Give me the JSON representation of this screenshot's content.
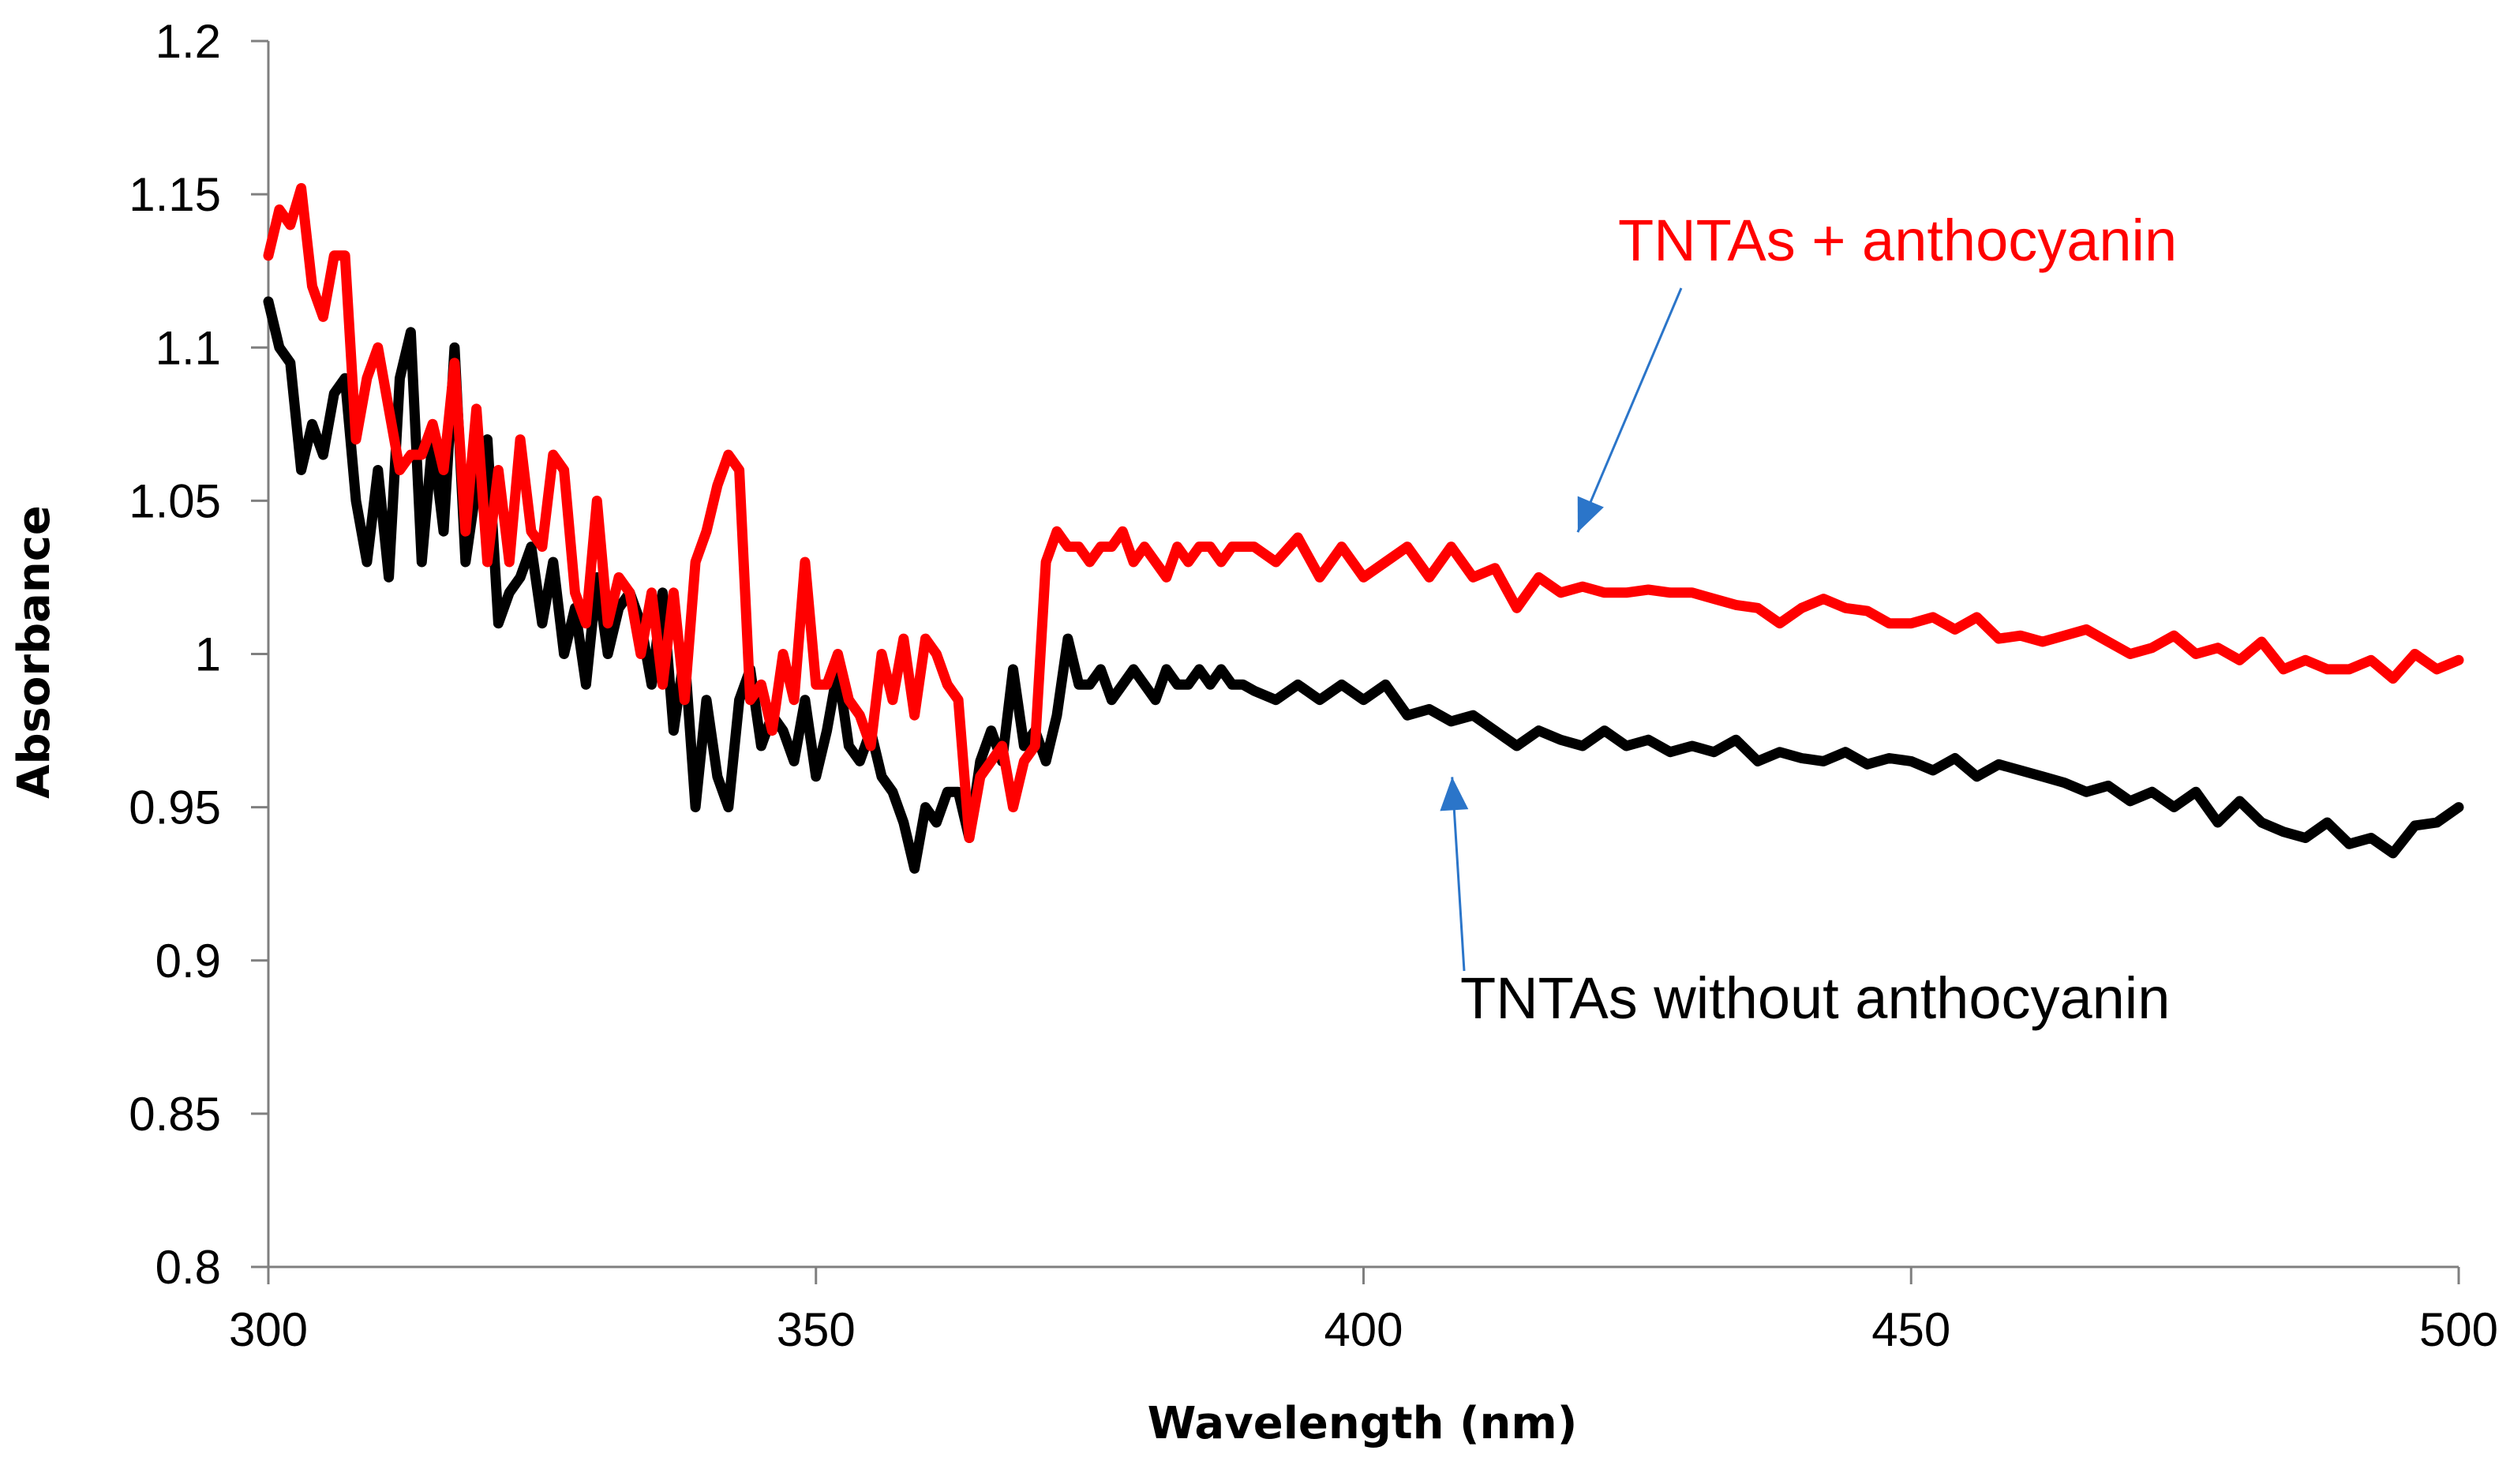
{
  "chart_data": {
    "type": "line",
    "title": "",
    "xlabel": "Wavelength (nm)",
    "ylabel": "Absorbance",
    "xlim": [
      300,
      500
    ],
    "ylim": [
      0.8,
      1.2
    ],
    "x_ticks": [
      300,
      350,
      400,
      450,
      500
    ],
    "x_tick_labels": [
      "300",
      "350",
      "400",
      "450",
      "500"
    ],
    "y_ticks": [
      0.8,
      0.85,
      0.9,
      0.95,
      1.0,
      1.05,
      1.1,
      1.15,
      1.2
    ],
    "y_tick_labels": [
      "0.8",
      "0.85",
      "0.9",
      "0.95",
      "1",
      "1.05",
      "1.1",
      "1.15",
      "1.2"
    ],
    "grid": false,
    "legend": "none (series labeled by annotations)",
    "series": [
      {
        "name": "TNTAs + anthocyanin",
        "color": "#ff0000",
        "x": [
          300,
          301,
          302,
          303,
          304,
          305,
          306,
          307,
          308,
          309,
          310,
          311,
          312,
          313,
          314,
          315,
          316,
          317,
          318,
          319,
          320,
          321,
          322,
          323,
          324,
          325,
          326,
          327,
          328,
          329,
          330,
          331,
          332,
          333,
          334,
          335,
          336,
          337,
          338,
          339,
          340,
          341,
          342,
          343,
          344,
          345,
          346,
          347,
          348,
          349,
          350,
          351,
          352,
          353,
          354,
          355,
          356,
          357,
          358,
          359,
          360,
          361,
          362,
          363,
          364,
          365,
          366,
          367,
          368,
          369,
          370,
          371,
          372,
          373,
          374,
          375,
          376,
          377,
          378,
          379,
          380,
          381,
          382,
          383,
          384,
          385,
          386,
          387,
          388,
          389,
          390,
          392,
          394,
          396,
          398,
          400,
          402,
          404,
          406,
          408,
          410,
          412,
          414,
          416,
          418,
          420,
          422,
          424,
          426,
          428,
          430,
          432,
          434,
          436,
          438,
          440,
          442,
          444,
          446,
          448,
          450,
          452,
          454,
          456,
          458,
          460,
          462,
          464,
          466,
          468,
          470,
          472,
          474,
          476,
          478,
          480,
          482,
          484,
          486,
          488,
          490,
          492,
          494,
          496,
          498,
          500
        ],
        "y": [
          1.13,
          1.145,
          1.14,
          1.152,
          1.12,
          1.11,
          1.13,
          1.13,
          1.07,
          1.09,
          1.1,
          1.08,
          1.06,
          1.065,
          1.065,
          1.075,
          1.06,
          1.095,
          1.04,
          1.08,
          1.03,
          1.06,
          1.03,
          1.07,
          1.04,
          1.035,
          1.065,
          1.06,
          1.02,
          1.01,
          1.05,
          1.01,
          1.025,
          1.02,
          1.0,
          1.02,
          0.99,
          1.02,
          0.985,
          1.03,
          1.04,
          1.055,
          1.065,
          1.06,
          0.985,
          0.99,
          0.975,
          1.0,
          0.985,
          1.03,
          0.99,
          0.99,
          1.0,
          0.985,
          0.98,
          0.97,
          1.0,
          0.985,
          1.005,
          0.98,
          1.005,
          1.0,
          0.99,
          0.985,
          0.94,
          0.96,
          0.965,
          0.97,
          0.95,
          0.965,
          0.97,
          1.03,
          1.04,
          1.035,
          1.035,
          1.03,
          1.035,
          1.035,
          1.04,
          1.03,
          1.035,
          1.03,
          1.025,
          1.035,
          1.03,
          1.035,
          1.035,
          1.03,
          1.035,
          1.035,
          1.035,
          1.03,
          1.038,
          1.025,
          1.035,
          1.025,
          1.03,
          1.035,
          1.025,
          1.035,
          1.025,
          1.028,
          1.015,
          1.025,
          1.02,
          1.022,
          1.02,
          1.02,
          1.021,
          1.02,
          1.02,
          1.018,
          1.016,
          1.015,
          1.01,
          1.015,
          1.018,
          1.015,
          1.014,
          1.01,
          1.01,
          1.012,
          1.008,
          1.012,
          1.005,
          1.006,
          1.004,
          1.006,
          1.008,
          1.004,
          1.0,
          1.002,
          1.006,
          1.0,
          1.002,
          0.998,
          1.004,
          0.995,
          0.998,
          0.995,
          0.995,
          0.998,
          0.992,
          1.0,
          0.995,
          0.998
        ]
      },
      {
        "name": "TNTAs without anthocyanin",
        "color": "#000000",
        "x": [
          300,
          301,
          302,
          303,
          304,
          305,
          306,
          307,
          308,
          309,
          310,
          311,
          312,
          313,
          314,
          315,
          316,
          317,
          318,
          319,
          320,
          321,
          322,
          323,
          324,
          325,
          326,
          327,
          328,
          329,
          330,
          331,
          332,
          333,
          334,
          335,
          336,
          337,
          338,
          339,
          340,
          341,
          342,
          343,
          344,
          345,
          346,
          347,
          348,
          349,
          350,
          351,
          352,
          353,
          354,
          355,
          356,
          357,
          358,
          359,
          360,
          361,
          362,
          363,
          364,
          365,
          366,
          367,
          368,
          369,
          370,
          371,
          372,
          373,
          374,
          375,
          376,
          377,
          378,
          379,
          380,
          381,
          382,
          383,
          384,
          385,
          386,
          387,
          388,
          389,
          390,
          392,
          394,
          396,
          398,
          400,
          402,
          404,
          406,
          408,
          410,
          412,
          414,
          416,
          418,
          420,
          422,
          424,
          426,
          428,
          430,
          432,
          434,
          436,
          438,
          440,
          442,
          444,
          446,
          448,
          450,
          452,
          454,
          456,
          458,
          460,
          462,
          464,
          466,
          468,
          470,
          472,
          474,
          476,
          478,
          480,
          482,
          484,
          486,
          488,
          490,
          492,
          494,
          496,
          498,
          500
        ],
        "y": [
          1.115,
          1.1,
          1.095,
          1.06,
          1.075,
          1.065,
          1.085,
          1.09,
          1.05,
          1.03,
          1.06,
          1.025,
          1.09,
          1.105,
          1.03,
          1.07,
          1.04,
          1.1,
          1.03,
          1.055,
          1.07,
          1.01,
          1.02,
          1.025,
          1.035,
          1.01,
          1.03,
          1.0,
          1.015,
          0.99,
          1.025,
          1.0,
          1.015,
          1.02,
          1.01,
          0.99,
          1.02,
          0.975,
          1.0,
          0.95,
          0.985,
          0.96,
          0.95,
          0.985,
          0.995,
          0.97,
          0.98,
          0.975,
          0.965,
          0.985,
          0.96,
          0.975,
          0.995,
          0.97,
          0.965,
          0.975,
          0.96,
          0.955,
          0.945,
          0.93,
          0.95,
          0.945,
          0.955,
          0.955,
          0.94,
          0.965,
          0.975,
          0.965,
          0.995,
          0.97,
          0.975,
          0.965,
          0.98,
          1.005,
          0.99,
          0.99,
          0.995,
          0.985,
          0.99,
          0.995,
          0.99,
          0.985,
          0.995,
          0.99,
          0.99,
          0.995,
          0.99,
          0.995,
          0.99,
          0.99,
          0.988,
          0.985,
          0.99,
          0.985,
          0.99,
          0.985,
          0.99,
          0.98,
          0.982,
          0.978,
          0.98,
          0.975,
          0.97,
          0.975,
          0.972,
          0.97,
          0.975,
          0.97,
          0.972,
          0.968,
          0.97,
          0.968,
          0.972,
          0.965,
          0.968,
          0.966,
          0.965,
          0.968,
          0.964,
          0.966,
          0.965,
          0.962,
          0.966,
          0.96,
          0.964,
          0.962,
          0.96,
          0.958,
          0.955,
          0.957,
          0.952,
          0.955,
          0.95,
          0.955,
          0.945,
          0.952,
          0.945,
          0.942,
          0.94,
          0.945,
          0.938,
          0.94,
          0.935,
          0.944,
          0.945,
          0.95
        ]
      }
    ],
    "annotations": [
      {
        "text": "TNTAs + anthocyanin",
        "color": "#ff0000",
        "points_to": {
          "x": 419,
          "y": 1.035
        }
      },
      {
        "text": "TNTAs without anthocyanin",
        "color": "#000000",
        "points_to": {
          "x": 408,
          "y": 0.965
        }
      }
    ],
    "arrow_color": "#2b75c9"
  }
}
